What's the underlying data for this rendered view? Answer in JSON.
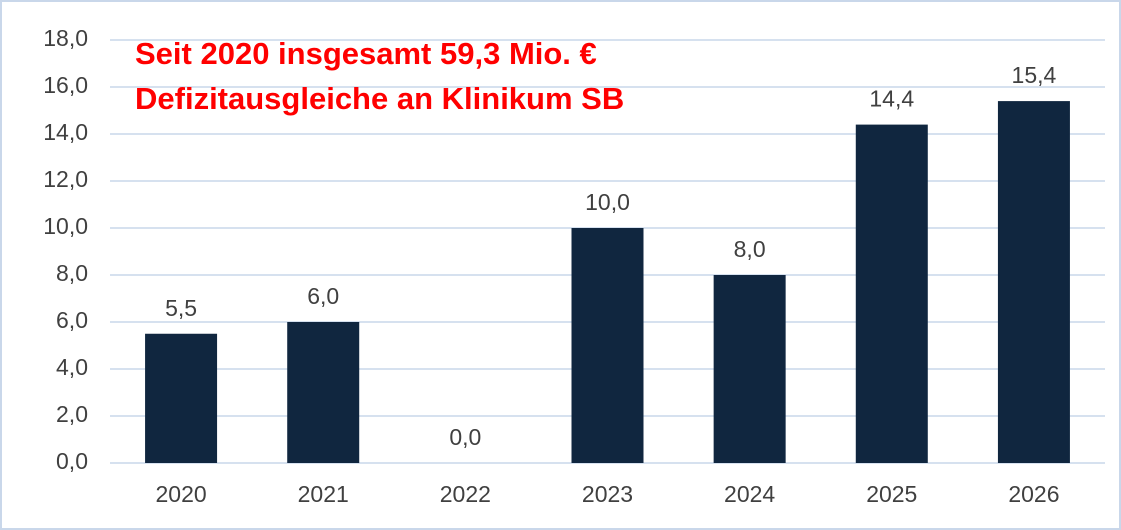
{
  "chart_data": {
    "type": "bar",
    "annotations": [
      "Seit 2020 insgesamt 59,3 Mio. €",
      "Defizitausgleiche an Klinikum SB"
    ],
    "annotation_color": "#ff0000",
    "categories": [
      "2020",
      "2021",
      "2022",
      "2023",
      "2024",
      "2025",
      "2026"
    ],
    "values": [
      5.5,
      6.0,
      0.0,
      10.0,
      8.0,
      14.4,
      15.4
    ],
    "value_labels": [
      "5,5",
      "6,0",
      "0,0",
      "10,0",
      "8,0",
      "14,4",
      "15,4"
    ],
    "color": "#10263f",
    "ylim": [
      0,
      18
    ],
    "yticks": [
      {
        "value": 0,
        "label": "0,0"
      },
      {
        "value": 2,
        "label": "2,0"
      },
      {
        "value": 4,
        "label": "4,0"
      },
      {
        "value": 6,
        "label": "6,0"
      },
      {
        "value": 8,
        "label": "8,0"
      },
      {
        "value": 10,
        "label": "10,0"
      },
      {
        "value": 12,
        "label": "12,0"
      },
      {
        "value": 14,
        "label": "14,0"
      },
      {
        "value": 16,
        "label": "16,0"
      },
      {
        "value": 18,
        "label": "18,0"
      }
    ],
    "grid": true
  }
}
